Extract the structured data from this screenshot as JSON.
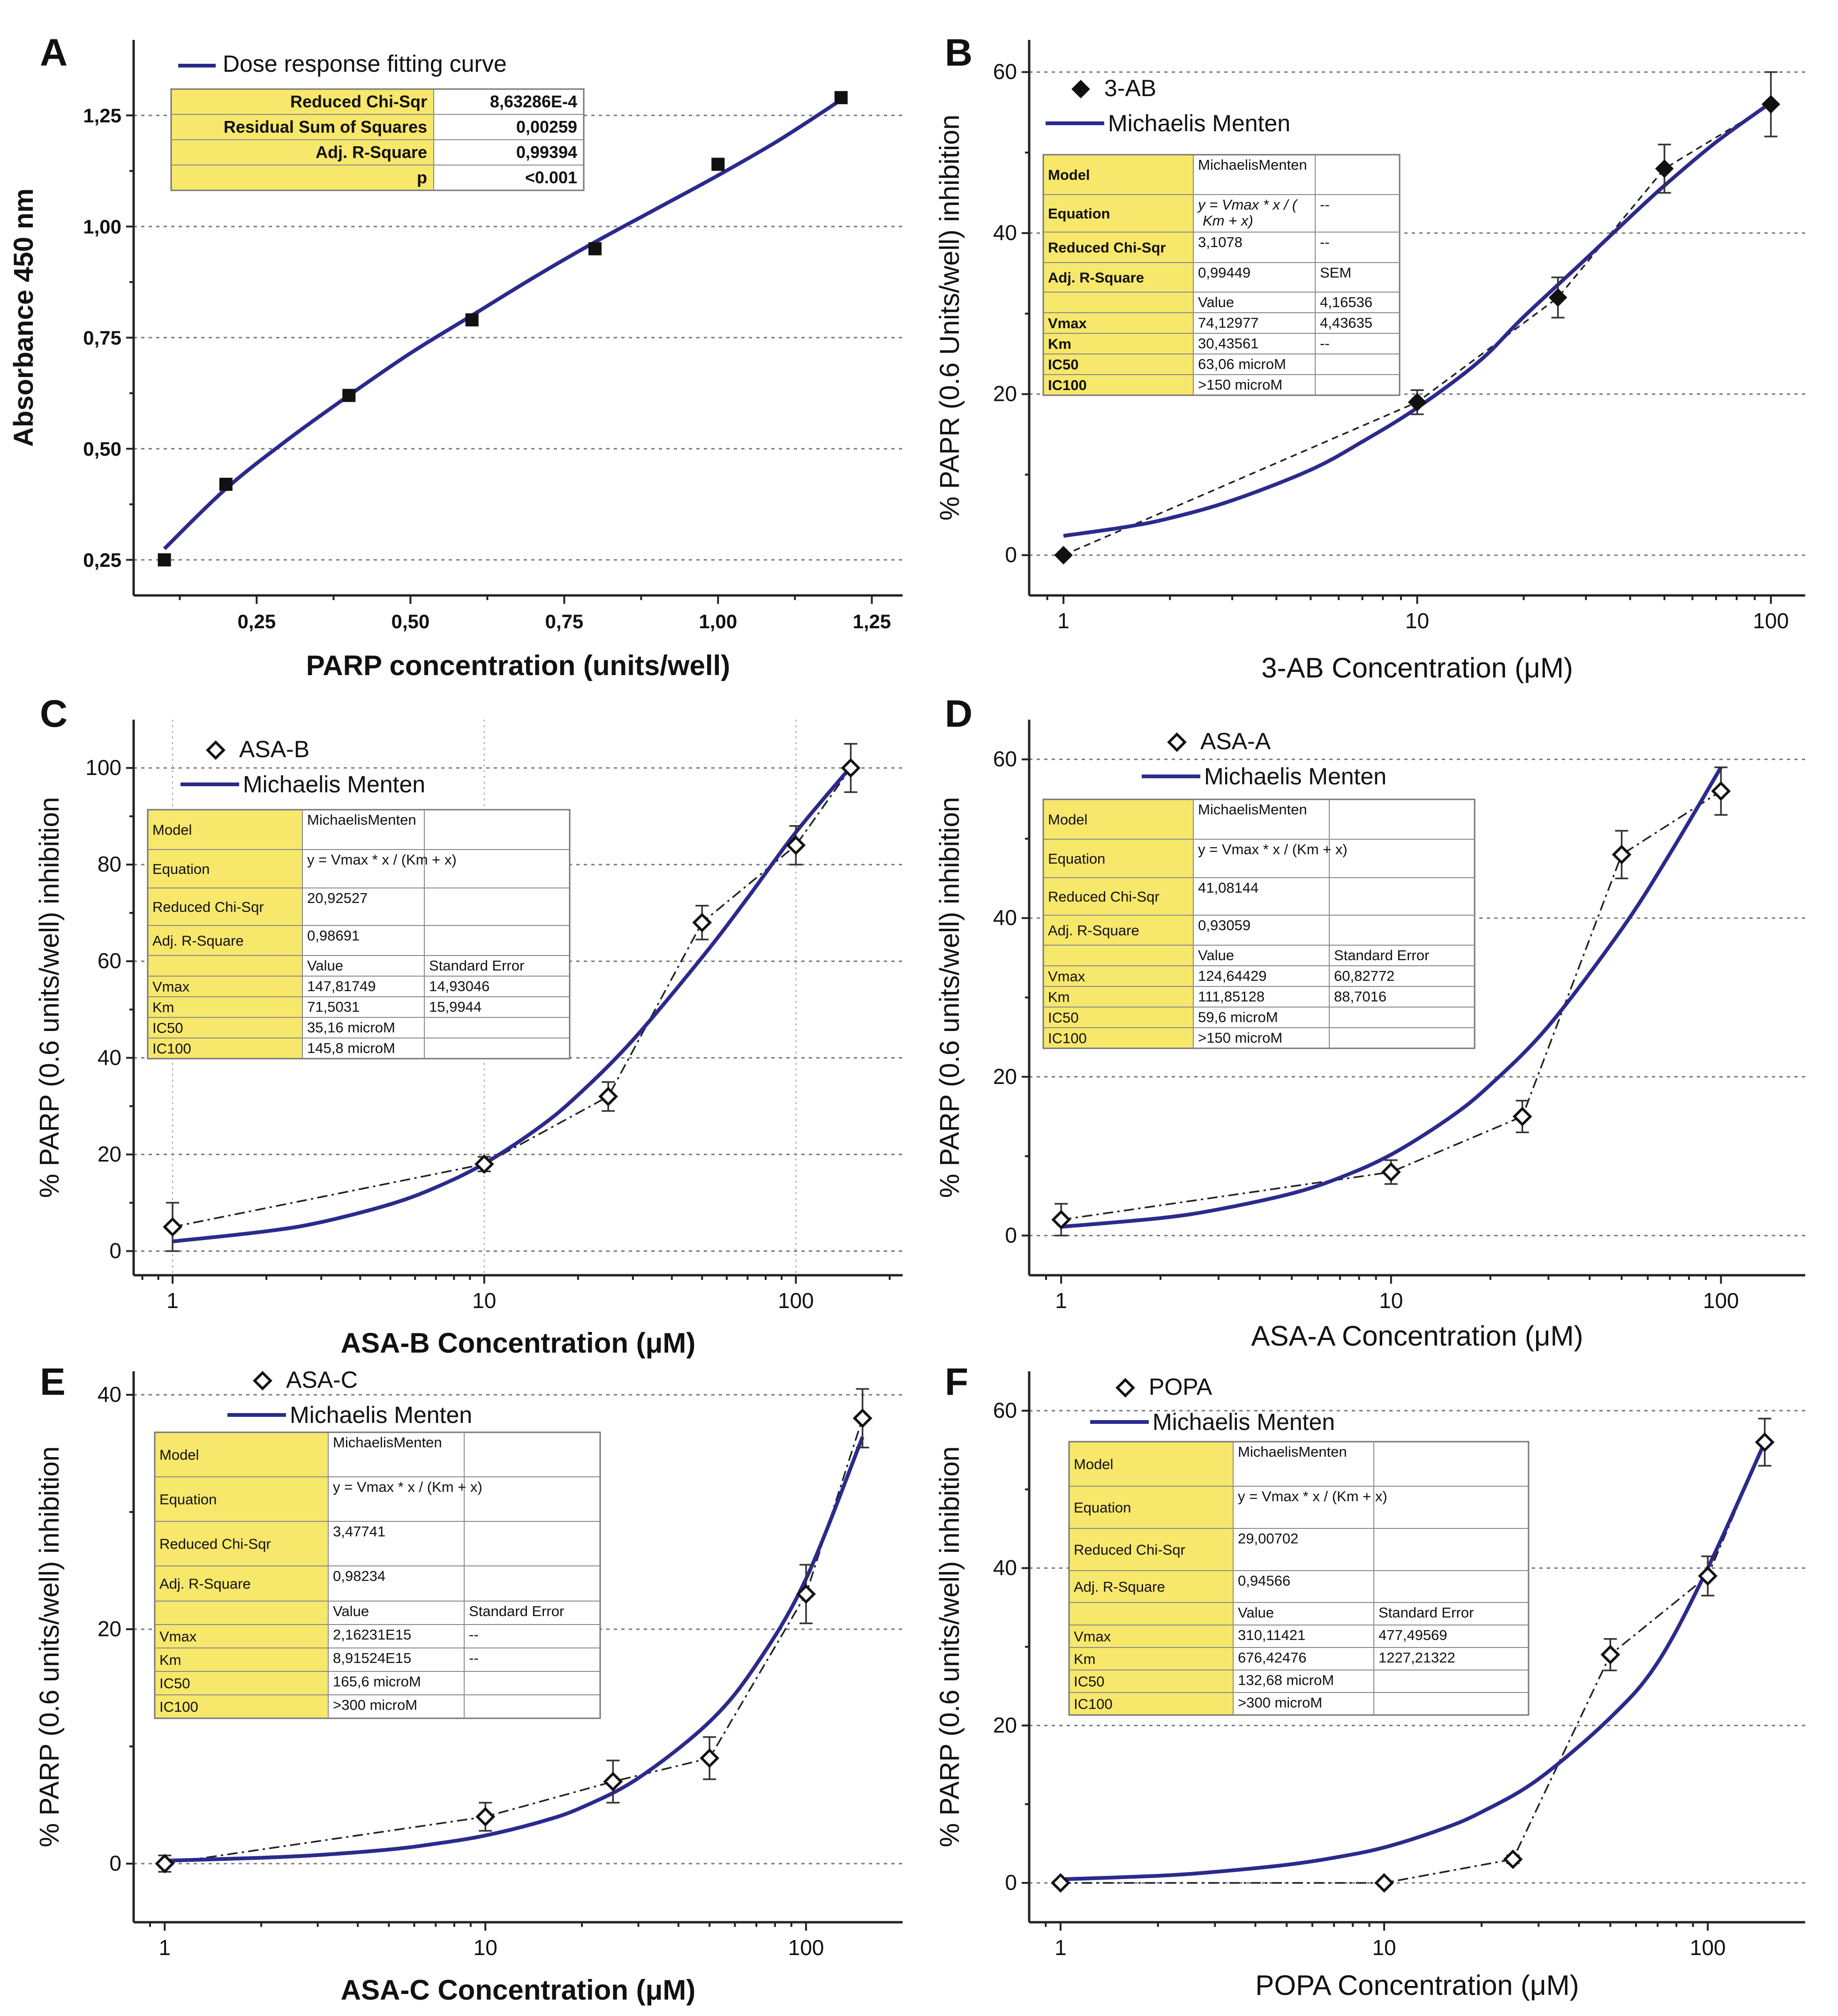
{
  "chart_data": [
    {
      "panel": "A",
      "type": "scatter",
      "xscale": "linear",
      "xlabel": "PARP concentration (units/well)",
      "ylabel": "Absorbance 450 nm",
      "xlim": [
        0.05,
        1.3
      ],
      "ylim": [
        0.17,
        1.42
      ],
      "xticks": [
        0.25,
        0.5,
        0.75,
        1.0,
        1.25
      ],
      "xtick_labels": [
        "0,25",
        "0,50",
        "0,75",
        "1,00",
        "1,25"
      ],
      "yticks": [
        0.25,
        0.5,
        0.75,
        1.0,
        1.25
      ],
      "ytick_labels": [
        "0,25",
        "0,50",
        "0,75",
        "1,00",
        "1,25"
      ],
      "marker": "square",
      "connect": false,
      "points": [
        {
          "x": 0.1,
          "y": 0.25
        },
        {
          "x": 0.2,
          "y": 0.42
        },
        {
          "x": 0.4,
          "y": 0.62
        },
        {
          "x": 0.6,
          "y": 0.79
        },
        {
          "x": 0.8,
          "y": 0.95
        },
        {
          "x": 1.0,
          "y": 1.14
        },
        {
          "x": 1.2,
          "y": 1.29
        }
      ],
      "fit": [
        {
          "x": 0.1,
          "y": 0.275
        },
        {
          "x": 0.2,
          "y": 0.41
        },
        {
          "x": 0.3,
          "y": 0.52
        },
        {
          "x": 0.4,
          "y": 0.62
        },
        {
          "x": 0.5,
          "y": 0.715
        },
        {
          "x": 0.6,
          "y": 0.8
        },
        {
          "x": 0.7,
          "y": 0.885
        },
        {
          "x": 0.8,
          "y": 0.965
        },
        {
          "x": 0.9,
          "y": 1.04
        },
        {
          "x": 1.0,
          "y": 1.115
        },
        {
          "x": 1.1,
          "y": 1.195
        },
        {
          "x": 1.2,
          "y": 1.285
        }
      ],
      "legend": {
        "fit_label": "Dose response fitting curve"
      },
      "table_style": "A",
      "table": [
        [
          "Reduced Chi-Sqr",
          "8,63286E-4"
        ],
        [
          "Residual Sum of Squares",
          "0,00259"
        ],
        [
          "Adj. R-Square",
          "0,99394"
        ],
        [
          "p",
          "<0.001"
        ]
      ]
    },
    {
      "panel": "B",
      "type": "line",
      "xscale": "log",
      "xlabel": "3-AB Concentration (μM)",
      "ylabel": "% PAPR (0.6 Units/well) inhibition",
      "xlim": [
        0.8,
        125
      ],
      "ylim": [
        -5,
        64
      ],
      "xticks": [
        1,
        10,
        100
      ],
      "xtick_labels": [
        "1",
        "10",
        "100"
      ],
      "yticks": [
        0,
        20,
        40,
        60
      ],
      "ytick_labels": [
        "0",
        "20",
        "40",
        "60"
      ],
      "marker": "diamond-filled",
      "connect": "dashed",
      "points": [
        {
          "x": 1,
          "y": 0,
          "err": 0
        },
        {
          "x": 10,
          "y": 19,
          "err": 1.5
        },
        {
          "x": 25,
          "y": 32,
          "err": 2.5
        },
        {
          "x": 50,
          "y": 48,
          "err": 3
        },
        {
          "x": 100,
          "y": 56,
          "err": 4
        }
      ],
      "fit": [
        {
          "x": 1,
          "y": 2.4
        },
        {
          "x": 1.5,
          "y": 3.5
        },
        {
          "x": 2,
          "y": 4.6
        },
        {
          "x": 3,
          "y": 6.8
        },
        {
          "x": 5,
          "y": 10.6
        },
        {
          "x": 7,
          "y": 14.1
        },
        {
          "x": 10,
          "y": 18.3
        },
        {
          "x": 15,
          "y": 24.1
        },
        {
          "x": 20,
          "y": 29.6
        },
        {
          "x": 30,
          "y": 36.8
        },
        {
          "x": 40,
          "y": 42.0
        },
        {
          "x": 50,
          "y": 45.9
        },
        {
          "x": 70,
          "y": 51.3
        },
        {
          "x": 100,
          "y": 56.2
        }
      ],
      "legend": {
        "data_label": "3-AB",
        "fit_label": "Michaelis Menten"
      },
      "table_style": "B",
      "table": [
        [
          "Model",
          "MichaelisMenten",
          ""
        ],
        [
          "Equation",
          "y = Vmax * x / ( Km + x)",
          "--"
        ],
        [
          "Reduced Chi-Sqr",
          "3,1078",
          "--"
        ],
        [
          "Adj. R-Square",
          "0,99449",
          "SEM"
        ],
        [
          "",
          "Value",
          "4,16536"
        ],
        [
          "Vmax",
          "74,12977",
          "4,43635"
        ],
        [
          "Km",
          "30,43561",
          "--"
        ],
        [
          "IC50",
          "63,06 microM",
          ""
        ],
        [
          "IC100",
          ">150 microM",
          ""
        ]
      ]
    },
    {
      "panel": "C",
      "type": "line",
      "xscale": "log",
      "xlabel": "ASA-B Concentration (μM)",
      "ylabel": "% PARP (0.6 units/well) inhibition",
      "xlim": [
        0.75,
        220
      ],
      "ylim": [
        -5,
        110
      ],
      "xticks": [
        1,
        10,
        100
      ],
      "xtick_labels": [
        "1",
        "10",
        "100"
      ],
      "yticks": [
        0,
        20,
        40,
        60,
        80,
        100
      ],
      "ytick_labels": [
        "0",
        "20",
        "40",
        "60",
        "80",
        "100"
      ],
      "marker": "diamond",
      "connect": "dashdot",
      "vertical_grid": true,
      "points": [
        {
          "x": 1,
          "y": 5,
          "err": 5
        },
        {
          "x": 10,
          "y": 18,
          "err": 1.5
        },
        {
          "x": 25,
          "y": 32,
          "err": 3
        },
        {
          "x": 50,
          "y": 68,
          "err": 3.5
        },
        {
          "x": 100,
          "y": 84,
          "err": 4
        },
        {
          "x": 150,
          "y": 100,
          "err": 5
        }
      ],
      "fit": [
        {
          "x": 1,
          "y": 2.0
        },
        {
          "x": 2,
          "y": 4.1
        },
        {
          "x": 3,
          "y": 6.0
        },
        {
          "x": 5,
          "y": 9.7
        },
        {
          "x": 7,
          "y": 13.2
        },
        {
          "x": 10,
          "y": 18.1
        },
        {
          "x": 15,
          "y": 25.6
        },
        {
          "x": 20,
          "y": 32.3
        },
        {
          "x": 30,
          "y": 43.7
        },
        {
          "x": 50,
          "y": 60.8
        },
        {
          "x": 70,
          "y": 73.1
        },
        {
          "x": 100,
          "y": 86.7
        },
        {
          "x": 150,
          "y": 100.2
        }
      ],
      "legend": {
        "data_label": "ASA-B",
        "fit_label": "Michaelis Menten"
      },
      "table_style": "C",
      "table": [
        [
          "Model",
          "MichaelisMenten",
          ""
        ],
        [
          "Equation",
          "y = Vmax * x / (Km + x)",
          ""
        ],
        [
          "Reduced Chi-Sqr",
          "20,92527",
          ""
        ],
        [
          "Adj. R-Square",
          "0,98691",
          ""
        ],
        [
          "",
          "Value",
          "Standard Error"
        ],
        [
          "Vmax",
          "147,81749",
          "14,93046"
        ],
        [
          "Km",
          "71,5031",
          "15,9944"
        ],
        [
          "IC50",
          "35,16 microM",
          ""
        ],
        [
          "IC100",
          "145,8 microM",
          ""
        ]
      ]
    },
    {
      "panel": "D",
      "type": "line",
      "xscale": "log",
      "xlabel": "ASA-A Concentration (μM)",
      "ylabel": "% PARP (0.6 units/well) inhibition",
      "xlim": [
        0.8,
        180
      ],
      "ylim": [
        -5,
        65
      ],
      "xticks": [
        1,
        10,
        100
      ],
      "xtick_labels": [
        "1",
        "10",
        "100"
      ],
      "yticks": [
        0,
        20,
        40,
        60
      ],
      "ytick_labels": [
        "0",
        "20",
        "40",
        "60"
      ],
      "marker": "diamond",
      "connect": "dashdot",
      "points": [
        {
          "x": 1,
          "y": 2,
          "err": 2
        },
        {
          "x": 10,
          "y": 8,
          "err": 1.5
        },
        {
          "x": 25,
          "y": 15,
          "err": 2
        },
        {
          "x": 50,
          "y": 48,
          "err": 3
        },
        {
          "x": 100,
          "y": 56,
          "err": 3
        }
      ],
      "fit": [
        {
          "x": 1,
          "y": 1.1
        },
        {
          "x": 2,
          "y": 2.2
        },
        {
          "x": 3,
          "y": 3.3
        },
        {
          "x": 5,
          "y": 5.3
        },
        {
          "x": 7,
          "y": 7.3
        },
        {
          "x": 10,
          "y": 10.2
        },
        {
          "x": 15,
          "y": 14.8
        },
        {
          "x": 20,
          "y": 19.0
        },
        {
          "x": 30,
          "y": 26.4
        },
        {
          "x": 50,
          "y": 38.6
        },
        {
          "x": 70,
          "y": 48.1
        },
        {
          "x": 100,
          "y": 59.0
        }
      ],
      "legend": {
        "data_label": "ASA-A",
        "fit_label": "Michaelis Menten"
      },
      "table_style": "C",
      "table": [
        [
          "Model",
          "MichaelisMenten",
          ""
        ],
        [
          "Equation",
          "y = Vmax * x / (Km + x)",
          ""
        ],
        [
          "Reduced Chi-Sqr",
          "41,08144",
          ""
        ],
        [
          "Adj. R-Square",
          "0,93059",
          ""
        ],
        [
          "",
          "Value",
          "Standard Error"
        ],
        [
          "Vmax",
          "124,64429",
          "60,82772"
        ],
        [
          "Km",
          "111,85128",
          "88,7016"
        ],
        [
          "IC50",
          "59,6 microM",
          ""
        ],
        [
          "IC100",
          ">150 microM",
          ""
        ]
      ]
    },
    {
      "panel": "E",
      "type": "line",
      "xscale": "log",
      "xlabel": "ASA-C Concentration (μM)",
      "ylabel": "% PARP (0.6 units/well) inhibition",
      "xlim": [
        0.8,
        200
      ],
      "ylim": [
        -5,
        42
      ],
      "xticks": [
        1,
        10,
        100
      ],
      "xtick_labels": [
        "1",
        "10",
        "100"
      ],
      "yticks": [
        0,
        20,
        40
      ],
      "ytick_labels": [
        "0",
        "20",
        "40"
      ],
      "marker": "diamond",
      "connect": "dashdot",
      "points": [
        {
          "x": 1,
          "y": 0,
          "err": 0.7
        },
        {
          "x": 10,
          "y": 4,
          "err": 1.2
        },
        {
          "x": 25,
          "y": 7,
          "err": 1.8
        },
        {
          "x": 50,
          "y": 9,
          "err": 1.8
        },
        {
          "x": 100,
          "y": 23,
          "err": 2.5
        },
        {
          "x": 150,
          "y": 38,
          "err": 2.5
        }
      ],
      "fit": [
        {
          "x": 1,
          "y": 0.25
        },
        {
          "x": 2,
          "y": 0.5
        },
        {
          "x": 3,
          "y": 0.73
        },
        {
          "x": 5,
          "y": 1.2
        },
        {
          "x": 7,
          "y": 1.7
        },
        {
          "x": 10,
          "y": 2.4
        },
        {
          "x": 15,
          "y": 3.6
        },
        {
          "x": 20,
          "y": 4.8
        },
        {
          "x": 30,
          "y": 7.3
        },
        {
          "x": 50,
          "y": 12.1
        },
        {
          "x": 70,
          "y": 17.0
        },
        {
          "x": 100,
          "y": 24.3
        },
        {
          "x": 150,
          "y": 36.4
        }
      ],
      "legend": {
        "data_label": "ASA-C",
        "fit_label": "Michaelis Menten"
      },
      "table_style": "E",
      "table": [
        [
          "Model",
          "MichaelisMenten",
          ""
        ],
        [
          "Equation",
          "y = Vmax * x / (Km + x)",
          ""
        ],
        [
          "Reduced Chi-Sqr",
          "3,47741",
          ""
        ],
        [
          "Adj. R-Square",
          "0,98234",
          ""
        ],
        [
          "",
          "Value",
          "Standard Error"
        ],
        [
          "Vmax",
          "2,16231E15",
          "--"
        ],
        [
          "Km",
          "8,91524E15",
          "--"
        ],
        [
          "IC50",
          "165,6 microM",
          ""
        ],
        [
          "IC100",
          ">300 microM",
          ""
        ]
      ]
    },
    {
      "panel": "F",
      "type": "line",
      "xscale": "log",
      "xlabel": "POPA Concentration (μM)",
      "ylabel": "% PARP (0.6 units/well) inhibition",
      "xlim": [
        0.8,
        200
      ],
      "ylim": [
        -5,
        65
      ],
      "xticks": [
        1,
        10,
        100
      ],
      "xtick_labels": [
        "1",
        "10",
        "100"
      ],
      "yticks": [
        0,
        20,
        40,
        60
      ],
      "ytick_labels": [
        "0",
        "20",
        "40",
        "60"
      ],
      "marker": "diamond",
      "connect": "dashdot",
      "points": [
        {
          "x": 1,
          "y": 0,
          "err": 0
        },
        {
          "x": 10,
          "y": 0,
          "err": 0
        },
        {
          "x": 25,
          "y": 3,
          "err": 0.5
        },
        {
          "x": 50,
          "y": 29,
          "err": 2
        },
        {
          "x": 100,
          "y": 39,
          "err": 2.5
        },
        {
          "x": 150,
          "y": 56,
          "err": 3
        }
      ],
      "fit": [
        {
          "x": 1,
          "y": 0.45
        },
        {
          "x": 2,
          "y": 0.9
        },
        {
          "x": 3,
          "y": 1.4
        },
        {
          "x": 5,
          "y": 2.3
        },
        {
          "x": 7,
          "y": 3.2
        },
        {
          "x": 10,
          "y": 4.5
        },
        {
          "x": 15,
          "y": 6.8
        },
        {
          "x": 20,
          "y": 9.0
        },
        {
          "x": 30,
          "y": 13.2
        },
        {
          "x": 50,
          "y": 21.0
        },
        {
          "x": 70,
          "y": 28.0
        },
        {
          "x": 100,
          "y": 40.0
        },
        {
          "x": 150,
          "y": 56.0
        }
      ],
      "legend": {
        "data_label": "POPA",
        "fit_label": "Michaelis Menten"
      },
      "table_style": "C",
      "table": [
        [
          "Model",
          "MichaelisMenten",
          ""
        ],
        [
          "Equation",
          "y = Vmax * x / (Km + x)",
          ""
        ],
        [
          "Reduced Chi-Sqr",
          "29,00702",
          ""
        ],
        [
          "Adj. R-Square",
          "0,94566",
          ""
        ],
        [
          "",
          "Value",
          "Standard Error"
        ],
        [
          "Vmax",
          "310,11421",
          "477,49569"
        ],
        [
          "Km",
          "676,42476",
          "1227,21322"
        ],
        [
          "IC50",
          "132,68 microM",
          ""
        ],
        [
          "IC100",
          ">300 microM",
          ""
        ]
      ]
    }
  ]
}
